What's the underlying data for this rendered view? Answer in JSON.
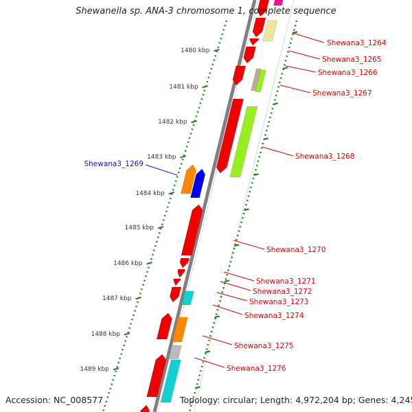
{
  "title": "Shewanella sp. ANA-3 chromosome 1, complete sequence",
  "footer": {
    "accession": "Accession: NC_008577",
    "topology": "Topology: circular; Length: 4,972,204 bp; Genes: 4,245"
  },
  "colors": {
    "backbone": "#808080",
    "ruler_dots": "#1a8a1a",
    "ruler_ticks": "#2e7d2e",
    "label_red": "#e00000",
    "label_blue": "#1010cc"
  },
  "ruler_ticks": [
    {
      "label": "1480 kbp"
    },
    {
      "label": "1481 kbp"
    },
    {
      "label": "1482 kbp"
    },
    {
      "label": "1483 kbp"
    },
    {
      "label": "1484 kbp"
    },
    {
      "label": "1485 kbp"
    },
    {
      "label": "1486 kbp"
    },
    {
      "label": "1487 kbp"
    },
    {
      "label": "1488 kbp"
    },
    {
      "label": "1489 kbp"
    }
  ],
  "gene_labels": [
    {
      "name": "Shewana3_1264",
      "color": "red"
    },
    {
      "name": "Shewana3_1265",
      "color": "red"
    },
    {
      "name": "Shewana3_1266",
      "color": "red"
    },
    {
      "name": "Shewana3_1267",
      "color": "red"
    },
    {
      "name": "Shewana3_1268",
      "color": "red"
    },
    {
      "name": "Shewana3_1269",
      "color": "blue"
    },
    {
      "name": "Shewana3_1270",
      "color": "red"
    },
    {
      "name": "Shewana3_1271",
      "color": "red"
    },
    {
      "name": "Shewana3_1272",
      "color": "red"
    },
    {
      "name": "Shewana3_1273",
      "color": "red"
    },
    {
      "name": "Shewana3_1274",
      "color": "red"
    },
    {
      "name": "Shewana3_1275",
      "color": "red"
    },
    {
      "name": "Shewana3_1276",
      "color": "red"
    }
  ]
}
